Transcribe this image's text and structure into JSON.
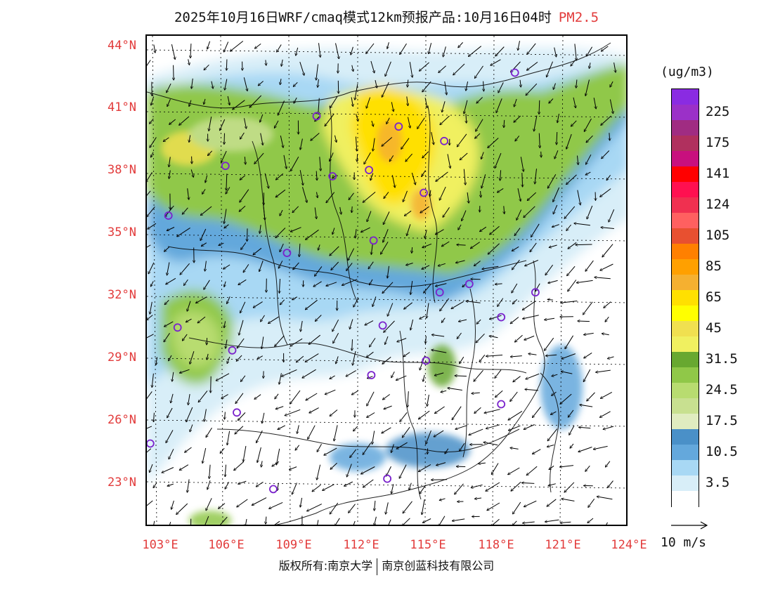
{
  "header": {
    "title": "2025年10月16日WRF/cmaq模式12km预报产品:10月16日04时",
    "variable": "PM2.5"
  },
  "axes": {
    "lat_labels": [
      "44°N",
      "41°N",
      "38°N",
      "35°N",
      "32°N",
      "29°N",
      "26°N",
      "23°N"
    ],
    "lon_labels": [
      "103°E",
      "106°E",
      "109°E",
      "112°E",
      "115°E",
      "118°E",
      "121°E",
      "124°E"
    ],
    "label_color": "#e23b3b"
  },
  "legend": {
    "unit": "(ug/m3)",
    "levels": [
      {
        "label": "",
        "color": "#8a2be2"
      },
      {
        "label": "225",
        "color": "#9b30c8"
      },
      {
        "label": "",
        "color": "#a02c82"
      },
      {
        "label": "175",
        "color": "#b0305e"
      },
      {
        "label": "",
        "color": "#c8107e"
      },
      {
        "label": "141",
        "color": "#ff0000"
      },
      {
        "label": "",
        "color": "#ff1050"
      },
      {
        "label": "124",
        "color": "#f03050"
      },
      {
        "label": "",
        "color": "#ff6060"
      },
      {
        "label": "105",
        "color": "#e85030"
      },
      {
        "label": "",
        "color": "#ff8000"
      },
      {
        "label": "85",
        "color": "#ffa000"
      },
      {
        "label": "",
        "color": "#f5b030"
      },
      {
        "label": "65",
        "color": "#ffe000"
      },
      {
        "label": "",
        "color": "#ffff00"
      },
      {
        "label": "45",
        "color": "#f0e050"
      },
      {
        "label": "",
        "color": "#f0f060"
      },
      {
        "label": "31.5",
        "color": "#68a830"
      },
      {
        "label": "",
        "color": "#90c848"
      },
      {
        "label": "24.5",
        "color": "#b8dc70"
      },
      {
        "label": "",
        "color": "#c8e090"
      },
      {
        "label": "17.5",
        "color": "#e0ecc0"
      },
      {
        "label": "",
        "color": "#4a90c8"
      },
      {
        "label": "10.5",
        "color": "#64a8dc"
      },
      {
        "label": "",
        "color": "#a8d8f4"
      },
      {
        "label": "3.5",
        "color": "#d8eef8"
      },
      {
        "label": "",
        "color": "#ffffff"
      }
    ]
  },
  "wind_reference": {
    "label": "10 m/s"
  },
  "footer": {
    "left": "版权所有:南京大学",
    "right": "南京创蓝科技有限公司"
  },
  "station_color": "#7a22cc",
  "stations": [
    {
      "lon": 118.9,
      "lat": 42.9
    },
    {
      "lon": 110.2,
      "lat": 40.8
    },
    {
      "lon": 113.8,
      "lat": 40.3
    },
    {
      "lon": 115.8,
      "lat": 39.6
    },
    {
      "lon": 106.2,
      "lat": 38.4
    },
    {
      "lon": 110.9,
      "lat": 37.9
    },
    {
      "lon": 112.5,
      "lat": 38.2
    },
    {
      "lon": 114.9,
      "lat": 37.1
    },
    {
      "lon": 103.7,
      "lat": 36.0
    },
    {
      "lon": 112.7,
      "lat": 34.8
    },
    {
      "lon": 108.9,
      "lat": 34.2
    },
    {
      "lon": 116.9,
      "lat": 32.7
    },
    {
      "lon": 115.6,
      "lat": 32.3
    },
    {
      "lon": 119.8,
      "lat": 32.3
    },
    {
      "lon": 118.3,
      "lat": 31.1
    },
    {
      "lon": 104.1,
      "lat": 30.6
    },
    {
      "lon": 113.1,
      "lat": 30.7
    },
    {
      "lon": 106.5,
      "lat": 29.5
    },
    {
      "lon": 115.0,
      "lat": 29.0
    },
    {
      "lon": 112.6,
      "lat": 28.3
    },
    {
      "lon": 106.7,
      "lat": 26.5
    },
    {
      "lon": 118.3,
      "lat": 26.9
    },
    {
      "lon": 102.9,
      "lat": 25.0
    },
    {
      "lon": 108.3,
      "lat": 22.8
    },
    {
      "lon": 113.3,
      "lat": 23.3
    }
  ]
}
